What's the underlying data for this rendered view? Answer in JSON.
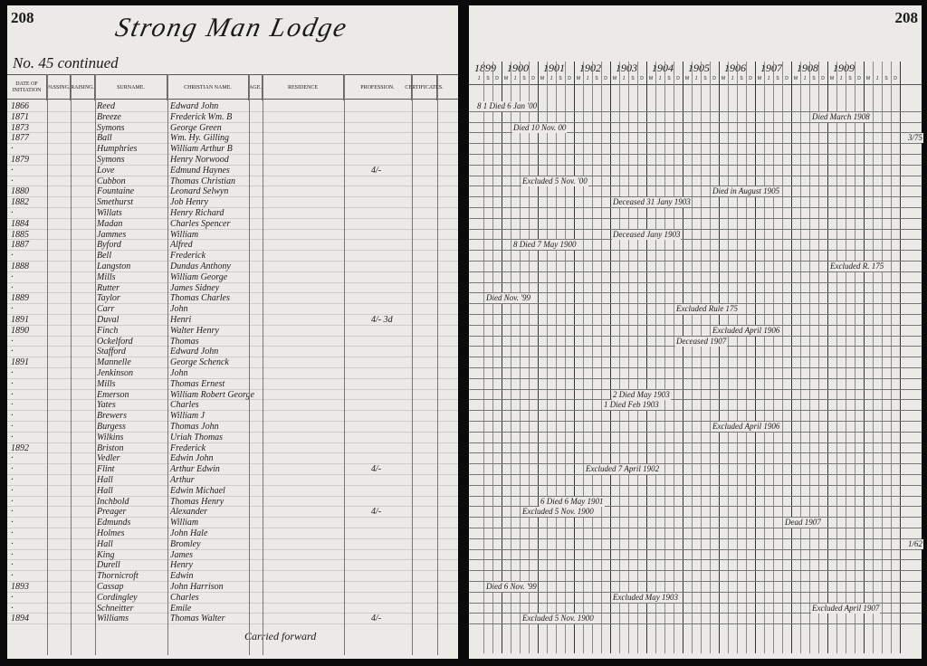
{
  "left_page": {
    "page_number": "208",
    "title": "Strong Man Lodge",
    "subtitle": "No. 45 continued",
    "columns": [
      "Date of Initiation",
      "Passing.",
      "Raising.",
      "Surname.",
      "Christian Name.",
      "Age.",
      "Residence",
      "Profession.",
      "Certificates."
    ],
    "carried_forward": "Carried forward"
  },
  "right_page": {
    "page_number": "208",
    "years": [
      "1899",
      "1900",
      "1901",
      "1902",
      "1903",
      "1904",
      "1905",
      "1906",
      "1907",
      "1908",
      "1909"
    ],
    "quarters": [
      "J",
      "S",
      "D",
      "M",
      "J",
      "S",
      "D",
      "M",
      "J",
      "S",
      "D",
      "M",
      "J",
      "S",
      "D",
      "M",
      "J",
      "S",
      "D",
      "M",
      "J",
      "S",
      "D",
      "M",
      "J",
      "S",
      "D",
      "M",
      "J",
      "S",
      "D",
      "M",
      "J",
      "S",
      "D",
      "M",
      "J",
      "S",
      "D",
      "M",
      "J",
      "S",
      "D",
      "M",
      "J",
      "S",
      "D"
    ]
  },
  "rows": [
    {
      "date": "1866",
      "surname": "Reed",
      "christian": "Edward John",
      "note": "8 1 Died 6 Jan '00",
      "q": 0
    },
    {
      "date": "1871",
      "surname": "Breeze",
      "christian": "Frederick Wm. B",
      "note": "Died March 1908",
      "q": 37
    },
    {
      "date": "1873",
      "surname": "Symons",
      "christian": "George Green",
      "note": "Died 10 Nov. 00",
      "q": 4
    },
    {
      "date": "1877",
      "surname": "Ball",
      "christian": "Wm. Hy. Gilling",
      "margin": "3/75"
    },
    {
      "date": "·",
      "surname": "Humphries",
      "christian": "William Arthur B"
    },
    {
      "date": "1879",
      "surname": "Symons",
      "christian": "Henry Norwood"
    },
    {
      "date": "·",
      "surname": "Love",
      "christian": "Edmund Haynes",
      "profession": "4/-"
    },
    {
      "date": "·",
      "surname": "Cubbon",
      "christian": "Thomas Christian",
      "note": "Excluded 5 Nov. '00",
      "q": 5
    },
    {
      "date": "1880",
      "surname": "Fountaine",
      "christian": "Leonard Selwyn",
      "note": "Died in August 1905",
      "q": 26
    },
    {
      "date": "1882",
      "surname": "Smethurst",
      "christian": "Job Henry",
      "note": "Deceased 31 Jany 1903",
      "q": 15
    },
    {
      "date": "·",
      "surname": "Willats",
      "christian": "Henry Richard"
    },
    {
      "date": "1884",
      "surname": "Madan",
      "christian": "Charles Spencer"
    },
    {
      "date": "1885",
      "surname": "Jammes",
      "christian": "William",
      "note": "Deceased Jany 1903",
      "q": 15
    },
    {
      "date": "1887",
      "surname": "Byford",
      "christian": "Alfred",
      "note": "8 Died 7 May 1900",
      "q": 4
    },
    {
      "date": "·",
      "surname": "Bell",
      "christian": "Frederick"
    },
    {
      "date": "1888",
      "surname": "Langston",
      "christian": "Dundas Anthony",
      "note": "Excluded R. 175",
      "q": 39
    },
    {
      "date": "·",
      "surname": "Mills",
      "christian": "William George"
    },
    {
      "date": "·",
      "surname": "Rutter",
      "christian": "James Sidney"
    },
    {
      "date": "1889",
      "surname": "Taylor",
      "christian": "Thomas Charles",
      "note": "Died Nov. '99",
      "q": 1
    },
    {
      "date": "·",
      "surname": "Carr",
      "christian": "John",
      "note": "Excluded Rule 175",
      "q": 22
    },
    {
      "date": "1891",
      "surname": "Duval",
      "christian": "Henri",
      "profession": "4/- 3d"
    },
    {
      "date": "1890",
      "surname": "Finch",
      "christian": "Walter Henry",
      "note": "Excluded April 1906",
      "q": 26
    },
    {
      "date": "·",
      "surname": "Ockelford",
      "christian": "Thomas",
      "note": "Deceased 1907",
      "q": 22
    },
    {
      "date": "·",
      "surname": "Stafford",
      "christian": "Edward John"
    },
    {
      "date": "1891",
      "surname": "Mannelle",
      "christian": "George Schenck"
    },
    {
      "date": "·",
      "surname": "Jenkinson",
      "christian": "John"
    },
    {
      "date": "·",
      "surname": "Mills",
      "christian": "Thomas Ernest"
    },
    {
      "date": "·",
      "surname": "Emerson",
      "christian": "William Robert George",
      "note": "2 Died May 1903",
      "q": 15
    },
    {
      "date": "·",
      "surname": "Yates",
      "christian": "Charles",
      "note": "1 Died Feb 1903",
      "q": 14
    },
    {
      "date": "·",
      "surname": "Brewers",
      "christian": "William J"
    },
    {
      "date": "·",
      "surname": "Burgess",
      "christian": "Thomas John",
      "note": "Excluded April 1906",
      "q": 26
    },
    {
      "date": "·",
      "surname": "Wilkins",
      "christian": "Uriah Thomas"
    },
    {
      "date": "1892",
      "surname": "Briston",
      "christian": "Frederick"
    },
    {
      "date": "·",
      "surname": "Vedler",
      "christian": "Edwin John"
    },
    {
      "date": "·",
      "surname": "Flint",
      "christian": "Arthur Edwin",
      "profession": "4/-",
      "note": "Excluded 7 April 1902",
      "q": 12
    },
    {
      "date": "·",
      "surname": "Hall",
      "christian": "Arthur"
    },
    {
      "date": "·",
      "surname": "Hall",
      "christian": "Edwin Michael"
    },
    {
      "date": "·",
      "surname": "Inchbold",
      "christian": "Thomas Henry",
      "note": "6 Died 6 May 1901",
      "q": 7
    },
    {
      "date": "·",
      "surname": "Preager",
      "christian": "Alexander",
      "profession": "4/-",
      "note": "Excluded 5 Nov. 1900",
      "q": 5
    },
    {
      "date": "·",
      "surname": "Edmunds",
      "christian": "William",
      "note": "Dead 1907",
      "q": 34
    },
    {
      "date": "·",
      "surname": "Holmes",
      "christian": "John Hale"
    },
    {
      "date": "·",
      "surname": "Hall",
      "christian": "Bromley",
      "margin": "1/62"
    },
    {
      "date": "·",
      "surname": "King",
      "christian": "James"
    },
    {
      "date": "·",
      "surname": "Durell",
      "christian": "Henry"
    },
    {
      "date": "·",
      "surname": "Thornicroft",
      "christian": "Edwin"
    },
    {
      "date": "1893",
      "surname": "Cassap",
      "christian": "John Harrison",
      "note": "Died 6 Nov. '99",
      "q": 1
    },
    {
      "date": "·",
      "surname": "Cordingley",
      "christian": "Charles",
      "note": "Excluded May 1903",
      "q": 15
    },
    {
      "date": "·",
      "surname": "Schneitter",
      "christian": "Emile",
      "note": "Excluded April 1907",
      "q": 37
    },
    {
      "date": "1894",
      "surname": "Williams",
      "christian": "Thomas Walter",
      "profession": "4/-",
      "note": "Excluded 5 Nov. 1900",
      "q": 5
    }
  ]
}
